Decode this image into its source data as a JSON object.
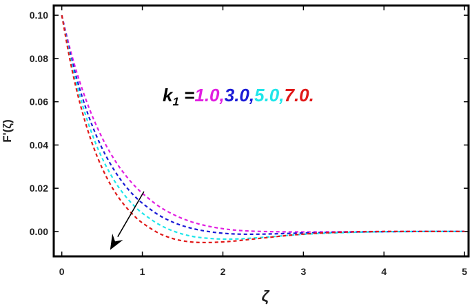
{
  "chart_data": {
    "type": "line",
    "title": "",
    "xlabel": "ζ",
    "ylabel": "F'(ζ)",
    "xlim": [
      -0.1,
      5.05
    ],
    "ylim": [
      -0.0115,
      0.1045
    ],
    "xticks": [
      "0",
      "1",
      "2",
      "3",
      "4",
      "5"
    ],
    "yticks": [
      "0.00",
      "0.02",
      "0.04",
      "0.06",
      "0.08",
      "0.10"
    ],
    "grid": false,
    "line_style": "dashed",
    "annotation": {
      "label_main": "k",
      "label_sub": "1",
      "label_eq": " =",
      "parts": [
        {
          "text": "1.0,",
          "color": "#e11ee1"
        },
        {
          "text": "3.0,",
          "color": "#1a1ad6"
        },
        {
          "text": "5.0,",
          "color": "#1fe6ea"
        },
        {
          "text": "7.0.",
          "color": "#e01818"
        }
      ]
    },
    "arrow": {
      "from": [
        1.02,
        0.0185
      ],
      "to": [
        0.6,
        -0.0085
      ],
      "direction": "increasing k1"
    },
    "x": [
      0,
      0.1,
      0.2,
      0.3,
      0.4,
      0.5,
      0.6,
      0.7,
      0.8,
      0.9,
      1.0,
      1.2,
      1.4,
      1.6,
      1.8,
      2.0,
      2.2,
      2.5,
      3.0,
      3.5,
      4.0,
      4.5,
      5.0
    ],
    "series": [
      {
        "k1": "1.0",
        "color": "#e11ee1",
        "values": [
          0.1,
          0.0848,
          0.0719,
          0.0609,
          0.0515,
          0.0434,
          0.0365,
          0.0306,
          0.0256,
          0.0213,
          0.0177,
          0.0118,
          0.0076,
          0.0046,
          0.0026,
          0.0013,
          0.0005,
          0.0,
          -0.0002,
          -0.0001,
          0.0,
          0.0,
          0.0
        ]
      },
      {
        "k1": "3.0",
        "color": "#1a1ad6",
        "values": [
          0.1,
          0.083,
          0.0688,
          0.0569,
          0.0469,
          0.0385,
          0.0315,
          0.0256,
          0.0206,
          0.0165,
          0.0131,
          0.0077,
          0.004,
          0.0016,
          0.0001,
          -0.0008,
          -0.0012,
          -0.0012,
          -0.0007,
          -0.0003,
          -0.0001,
          0.0,
          0.0
        ]
      },
      {
        "k1": "5.0",
        "color": "#1fe6ea",
        "values": [
          0.1,
          0.0814,
          0.066,
          0.0533,
          0.0427,
          0.034,
          0.0268,
          0.0208,
          0.0159,
          0.0118,
          0.0085,
          0.0034,
          0.0,
          -0.0021,
          -0.0031,
          -0.0035,
          -0.0034,
          -0.0027,
          -0.0013,
          -0.0005,
          -0.0001,
          0.0,
          0.0
        ]
      },
      {
        "k1": "7.0",
        "color": "#e01818",
        "values": [
          0.1,
          0.0796,
          0.063,
          0.0495,
          0.0384,
          0.0294,
          0.022,
          0.016,
          0.0112,
          0.0072,
          0.004,
          -0.0007,
          -0.0035,
          -0.0048,
          -0.0051,
          -0.0048,
          -0.0042,
          -0.003,
          -0.0012,
          -0.0003,
          0.0,
          0.0,
          0.0
        ]
      }
    ]
  }
}
